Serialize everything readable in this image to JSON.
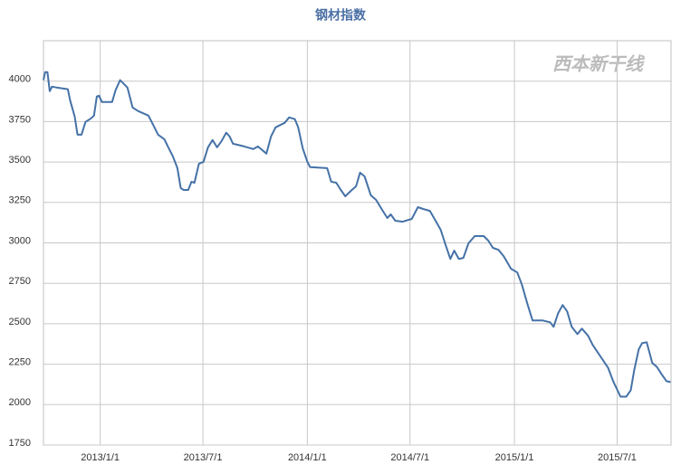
{
  "chart_data": {
    "type": "line",
    "title": "钢材指数",
    "watermark": "西本新干线",
    "color": "#4572a7",
    "grid": true,
    "ylim": [
      1750,
      4250
    ],
    "yticks": [
      1750,
      2000,
      2250,
      2500,
      2750,
      3000,
      3250,
      3500,
      3750,
      4000
    ],
    "xlim": [
      "2012/9/23",
      "2015/10/4"
    ],
    "xticks": [
      "2013/1/1",
      "2013/7/1",
      "2014/1/1",
      "2014/7/1",
      "2015/1/1",
      "2015/7/1"
    ],
    "x": [
      "2012/9/23",
      "2012/9/26",
      "2012/9/30",
      "2012/10/4",
      "2012/10/8",
      "2012/10/16",
      "2012/11/5",
      "2012/11/9",
      "2012/11/17",
      "2012/11/22",
      "2012/11/29",
      "2012/12/6",
      "2012/12/16",
      "2012/12/21",
      "2012/12/26",
      "2012/12/30",
      "2013/1/4",
      "2013/1/22",
      "2013/1/28",
      "2013/2/5",
      "2013/2/18",
      "2013/2/27",
      "2013/3/9",
      "2013/3/27",
      "2013/4/5",
      "2013/4/13",
      "2013/4/24",
      "2013/5/1",
      "2013/5/9",
      "2013/5/17",
      "2013/5/23",
      "2013/5/28",
      "2013/6/5",
      "2013/6/11",
      "2013/6/16",
      "2013/6/24",
      "2013/7/2",
      "2013/7/10",
      "2013/7/18",
      "2013/7/26",
      "2013/8/3",
      "2013/8/11",
      "2013/8/17",
      "2013/8/23",
      "2013/9/12",
      "2013/9/28",
      "2013/10/6",
      "2013/10/21",
      "2013/10/29",
      "2013/11/6",
      "2013/11/22",
      "2013/11/30",
      "2013/12/10",
      "2013/12/16",
      "2013/12/24",
      "2014/1/1",
      "2014/1/6",
      "2014/2/5",
      "2014/2/12",
      "2014/2/21",
      "2014/2/28",
      "2014/3/9",
      "2014/3/19",
      "2014/3/28",
      "2014/4/4",
      "2014/4/12",
      "2014/4/23",
      "2014/5/2",
      "2014/5/14",
      "2014/5/22",
      "2014/5/28",
      "2014/6/5",
      "2014/6/18",
      "2014/7/4",
      "2014/7/15",
      "2014/7/24",
      "2014/8/5",
      "2014/8/16",
      "2014/8/24",
      "2014/9/2",
      "2014/9/10",
      "2014/9/17",
      "2014/9/25",
      "2014/10/3",
      "2014/10/12",
      "2014/10/23",
      "2014/11/8",
      "2014/11/16",
      "2014/11/24",
      "2014/12/4",
      "2014/12/13",
      "2014/12/26",
      "2015/1/6",
      "2015/1/14",
      "2015/1/24",
      "2015/2/2",
      "2015/2/20",
      "2015/3/5",
      "2015/3/11",
      "2015/3/19",
      "2015/3/27",
      "2015/4/4",
      "2015/4/12",
      "2015/4/22",
      "2015/4/30",
      "2015/5/11",
      "2015/5/19",
      "2015/6/4",
      "2015/6/15",
      "2015/6/24",
      "2015/7/7",
      "2015/7/17",
      "2015/7/25",
      "2015/7/31",
      "2015/8/8",
      "2015/8/14",
      "2015/8/22",
      "2015/9/1",
      "2015/9/9",
      "2015/9/17",
      "2015/9/26",
      "2015/10/3"
    ],
    "values": [
      4006,
      4056,
      4056,
      3938,
      3966,
      3961,
      3950,
      3882,
      3781,
      3669,
      3669,
      3748,
      3770,
      3787,
      3905,
      3910,
      3871,
      3871,
      3944,
      4006,
      3961,
      3837,
      3815,
      3787,
      3725,
      3669,
      3641,
      3591,
      3535,
      3462,
      3339,
      3327,
      3327,
      3378,
      3372,
      3490,
      3501,
      3591,
      3636,
      3591,
      3630,
      3681,
      3658,
      3613,
      3596,
      3580,
      3596,
      3552,
      3658,
      3714,
      3742,
      3776,
      3765,
      3714,
      3585,
      3501,
      3468,
      3462,
      3378,
      3372,
      3333,
      3288,
      3322,
      3350,
      3434,
      3411,
      3294,
      3266,
      3198,
      3154,
      3176,
      3137,
      3131,
      3148,
      3221,
      3210,
      3198,
      3131,
      3081,
      2985,
      2901,
      2952,
      2901,
      2907,
      2997,
      3042,
      3042,
      3014,
      2969,
      2957,
      2918,
      2840,
      2817,
      2744,
      2621,
      2520,
      2520,
      2509,
      2481,
      2565,
      2616,
      2576,
      2481,
      2436,
      2470,
      2425,
      2369,
      2285,
      2229,
      2145,
      2049,
      2049,
      2089,
      2212,
      2341,
      2380,
      2386,
      2257,
      2234,
      2190,
      2145,
      2139
    ]
  }
}
